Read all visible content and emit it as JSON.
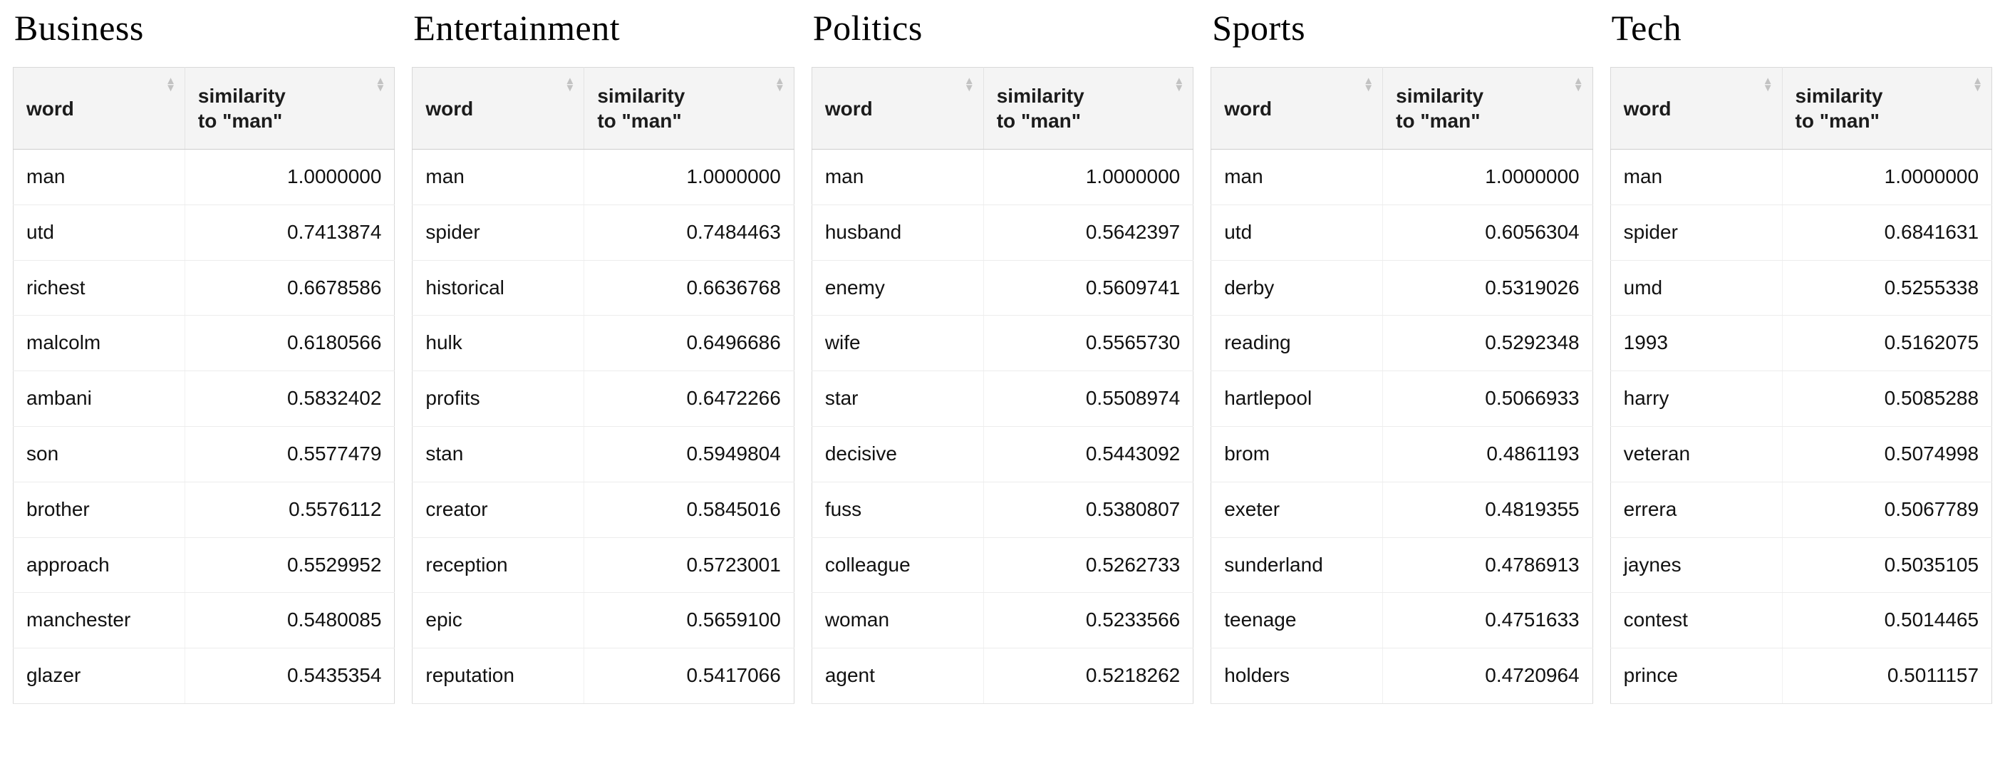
{
  "icons": {
    "sort_asc": "▲",
    "sort_desc": "▼"
  },
  "chart_data": [
    {
      "type": "table",
      "title": "Business",
      "columns": [
        "word",
        "similarity\nto \"man\""
      ],
      "rows": [
        [
          "man",
          "1.0000000"
        ],
        [
          "utd",
          "0.7413874"
        ],
        [
          "richest",
          "0.6678586"
        ],
        [
          "malcolm",
          "0.6180566"
        ],
        [
          "ambani",
          "0.5832402"
        ],
        [
          "son",
          "0.5577479"
        ],
        [
          "brother",
          "0.5576112"
        ],
        [
          "approach",
          "0.5529952"
        ],
        [
          "manchester",
          "0.5480085"
        ],
        [
          "glazer",
          "0.5435354"
        ]
      ]
    },
    {
      "type": "table",
      "title": "Entertainment",
      "columns": [
        "word",
        "similarity\nto \"man\""
      ],
      "rows": [
        [
          "man",
          "1.0000000"
        ],
        [
          "spider",
          "0.7484463"
        ],
        [
          "historical",
          "0.6636768"
        ],
        [
          "hulk",
          "0.6496686"
        ],
        [
          "profits",
          "0.6472266"
        ],
        [
          "stan",
          "0.5949804"
        ],
        [
          "creator",
          "0.5845016"
        ],
        [
          "reception",
          "0.5723001"
        ],
        [
          "epic",
          "0.5659100"
        ],
        [
          "reputation",
          "0.5417066"
        ]
      ]
    },
    {
      "type": "table",
      "title": "Politics",
      "columns": [
        "word",
        "similarity\nto \"man\""
      ],
      "rows": [
        [
          "man",
          "1.0000000"
        ],
        [
          "husband",
          "0.5642397"
        ],
        [
          "enemy",
          "0.5609741"
        ],
        [
          "wife",
          "0.5565730"
        ],
        [
          "star",
          "0.5508974"
        ],
        [
          "decisive",
          "0.5443092"
        ],
        [
          "fuss",
          "0.5380807"
        ],
        [
          "colleague",
          "0.5262733"
        ],
        [
          "woman",
          "0.5233566"
        ],
        [
          "agent",
          "0.5218262"
        ]
      ]
    },
    {
      "type": "table",
      "title": "Sports",
      "columns": [
        "word",
        "similarity\nto \"man\""
      ],
      "rows": [
        [
          "man",
          "1.0000000"
        ],
        [
          "utd",
          "0.6056304"
        ],
        [
          "derby",
          "0.5319026"
        ],
        [
          "reading",
          "0.5292348"
        ],
        [
          "hartlepool",
          "0.5066933"
        ],
        [
          "brom",
          "0.4861193"
        ],
        [
          "exeter",
          "0.4819355"
        ],
        [
          "sunderland",
          "0.4786913"
        ],
        [
          "teenage",
          "0.4751633"
        ],
        [
          "holders",
          "0.4720964"
        ]
      ]
    },
    {
      "type": "table",
      "title": "Tech",
      "columns": [
        "word",
        "similarity\nto \"man\""
      ],
      "rows": [
        [
          "man",
          "1.0000000"
        ],
        [
          "spider",
          "0.6841631"
        ],
        [
          "umd",
          "0.5255338"
        ],
        [
          "1993",
          "0.5162075"
        ],
        [
          "harry",
          "0.5085288"
        ],
        [
          "veteran",
          "0.5074998"
        ],
        [
          "errera",
          "0.5067789"
        ],
        [
          "jaynes",
          "0.5035105"
        ],
        [
          "contest",
          "0.5014465"
        ],
        [
          "prince",
          "0.5011157"
        ]
      ]
    }
  ]
}
